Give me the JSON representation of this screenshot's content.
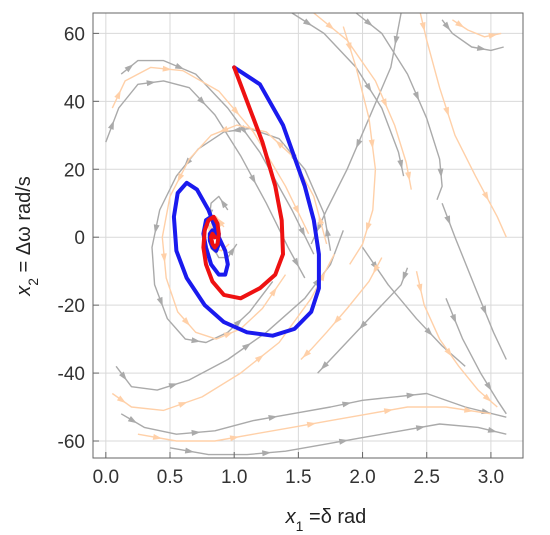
{
  "chart_data": {
    "type": "line",
    "title": "",
    "xlabel": {
      "var": "x",
      "sub": "1",
      "rest": " =δ rad"
    },
    "ylabel": {
      "var": "x",
      "sub": "2",
      "rest": " = Δω rad/s"
    },
    "xlim": [
      -0.1,
      3.25
    ],
    "ylim": [
      -65,
      66
    ],
    "xticks": [
      "0.0",
      "0.5",
      "1.0",
      "1.5",
      "2.0",
      "2.5",
      "3.0"
    ],
    "yticks": [
      "60",
      "40",
      "20",
      "0",
      "-20",
      "-40",
      "-60"
    ],
    "grid": true,
    "series": [
      {
        "kind": "trajectory",
        "color": "#1a1aee",
        "x": [
          1.0,
          1.2,
          1.38,
          1.55,
          1.62,
          1.66,
          1.66,
          1.6,
          1.47,
          1.3,
          1.1,
          0.92,
          0.77,
          0.63,
          0.55,
          0.53,
          0.56,
          0.63,
          0.71,
          0.8,
          0.88,
          0.93,
          0.95,
          0.93,
          0.88,
          0.82,
          0.78,
          0.76,
          0.78,
          0.82,
          0.86,
          0.88,
          0.88,
          0.86,
          0.83,
          0.81,
          0.81,
          0.83,
          0.85
        ],
        "y": [
          50,
          45,
          33,
          15,
          5,
          -5,
          -15,
          -22,
          -27,
          -29,
          -28,
          -25,
          -20,
          -12,
          -4,
          6,
          13,
          16,
          14,
          8,
          0,
          -4,
          -8,
          -11,
          -11,
          -8,
          -3,
          1,
          5,
          6,
          4,
          1,
          -2,
          -4,
          -3,
          -1,
          1,
          2,
          0
        ]
      },
      {
        "kind": "trajectory",
        "color": "#ee1111",
        "x": [
          1.0,
          1.1,
          1.22,
          1.32,
          1.37,
          1.38,
          1.32,
          1.2,
          1.05,
          0.92,
          0.83,
          0.78,
          0.76,
          0.77,
          0.8,
          0.84,
          0.87,
          0.88,
          0.87,
          0.85,
          0.83,
          0.82,
          0.83,
          0.85
        ],
        "y": [
          50,
          40,
          28,
          15,
          5,
          -5,
          -11,
          -15,
          -18,
          -17,
          -13,
          -8,
          -3,
          2,
          5,
          6,
          4,
          1,
          -2,
          -3,
          -2,
          0,
          1,
          0
        ]
      }
    ],
    "streamlines": [
      {
        "color": "#aaaaaa",
        "lines": [
          {
            "x": [
              0.12,
              0.25,
              0.45,
              0.7,
              0.95,
              1.2,
              1.45,
              1.62
            ],
            "y": [
              48,
              52,
              52,
              48,
              38,
              25,
              8,
              -5
            ]
          },
          {
            "x": [
              0.0,
              0.1,
              0.25,
              0.45,
              0.65,
              0.85,
              1.05,
              1.25,
              1.42,
              1.55
            ],
            "y": [
              28,
              38,
              45,
              46,
              44,
              36,
              24,
              10,
              -3,
              -12
            ]
          },
          {
            "x": [
              1.75,
              1.7,
              1.55,
              1.35,
              1.12,
              0.92,
              0.72,
              0.55,
              0.42,
              0.36,
              0.38,
              0.48,
              0.62,
              0.78,
              0.95,
              1.12,
              1.3
            ],
            "y": [
              -4,
              7,
              20,
              29,
              32,
              31,
              26,
              18,
              8,
              -3,
              -14,
              -24,
              -30,
              -31,
              -28,
              -22,
              -13
            ]
          },
          {
            "x": [
              0.08,
              0.2,
              0.4,
              0.65,
              0.95,
              1.25,
              1.55,
              1.75,
              1.85
            ],
            "y": [
              -38,
              -44,
              -45,
              -42,
              -36,
              -28,
              -18,
              -8,
              2
            ]
          },
          {
            "x": [
              0.12,
              0.3,
              0.55,
              0.85,
              1.15,
              1.45,
              1.75,
              2.0,
              2.25,
              2.5,
              2.8,
              3.12
            ],
            "y": [
              -52,
              -56,
              -58,
              -57,
              -54,
              -52,
              -50,
              -48,
              -47,
              -46,
              -50,
              -53
            ]
          },
          {
            "x": [
              0.5,
              0.8,
              1.1,
              1.4,
              1.7,
              2.0,
              2.3,
              2.6,
              2.9,
              3.12
            ],
            "y": [
              -62,
              -64,
              -64,
              -63,
              -61,
              -59,
              -57,
              -55,
              -56,
              -58
            ]
          },
          {
            "x": [
              1.45,
              1.7,
              1.95,
              2.15,
              2.28,
              2.32
            ],
            "y": [
              66,
              60,
              50,
              38,
              25,
              18
            ]
          },
          {
            "x": [
              1.95,
              2.15,
              2.35,
              2.5,
              2.6,
              2.62,
              2.58
            ],
            "y": [
              66,
              60,
              48,
              35,
              23,
              15,
              11
            ]
          },
          {
            "x": [
              2.62,
              2.7,
              2.85,
              3.0,
              3.1
            ],
            "y": [
              64,
              60,
              56,
              55,
              56
            ]
          },
          {
            "x": [
              2.35,
              2.3,
              2.1,
              1.9,
              1.75,
              1.65
            ],
            "y": [
              -9,
              -14,
              -22,
              -30,
              -36,
              -40
            ]
          },
          {
            "x": [
              2.62,
              2.72,
              2.88,
              3.02,
              3.12
            ],
            "y": [
              10,
              0,
              -15,
              -28,
              -36
            ]
          },
          {
            "x": [
              2.65,
              2.78,
              2.92,
              3.05,
              3.12
            ],
            "y": [
              -18,
              -30,
              -40,
              -48,
              -52
            ]
          },
          {
            "x": [
              2.0,
              2.2,
              2.42,
              2.62,
              2.8
            ],
            "y": [
              -3,
              -14,
              -24,
              -32,
              -38
            ]
          },
          {
            "x": [
              2.3,
              2.22,
              2.05,
              1.88,
              1.72,
              1.6
            ],
            "y": [
              66,
              50,
              35,
              20,
              8,
              -2
            ]
          },
          {
            "x": [
              0.95,
              0.88,
              0.82,
              0.8,
              0.82,
              0.88,
              0.95,
              1.02
            ],
            "y": [
              8,
              12,
              10,
              4,
              -2,
              -6,
              -6,
              -2
            ]
          }
        ]
      },
      {
        "color": "#ffd0a8",
        "lines": [
          {
            "x": [
              0.05,
              0.15,
              0.35,
              0.6,
              0.88,
              1.15,
              1.4,
              1.58
            ],
            "y": [
              38,
              46,
              50,
              49,
              43,
              31,
              15,
              1
            ]
          },
          {
            "x": [
              0.05,
              0.2,
              0.45,
              0.75,
              1.05,
              1.35,
              1.6,
              1.78
            ],
            "y": [
              -46,
              -50,
              -51,
              -47,
              -40,
              -31,
              -18,
              -5
            ]
          },
          {
            "x": [
              0.25,
              0.55,
              0.85,
              1.15,
              1.45,
              1.75,
              2.05,
              2.35,
              2.65,
              3.0
            ],
            "y": [
              -58,
              -60,
              -60,
              -58,
              -56,
              -54,
              -52,
              -50,
              -50,
              -52
            ]
          },
          {
            "x": [
              1.72,
              1.62,
              1.45,
              1.25,
              1.02,
              0.82,
              0.65,
              0.5,
              0.44,
              0.47,
              0.56,
              0.7,
              0.86,
              1.05,
              1.22,
              1.4
            ],
            "y": [
              -2,
              12,
              24,
              31,
              33,
              30,
              23,
              12,
              0,
              -12,
              -22,
              -28,
              -30,
              -27,
              -21,
              -11
            ]
          },
          {
            "x": [
              1.62,
              1.88,
              2.1,
              2.25,
              2.34,
              2.38
            ],
            "y": [
              66,
              58,
              46,
              33,
              22,
              14
            ]
          },
          {
            "x": [
              2.45,
              2.5,
              2.6,
              2.72,
              2.88,
              3.05,
              3.12
            ],
            "y": [
              66,
              58,
              44,
              30,
              18,
              6,
              0
            ]
          },
          {
            "x": [
              2.42,
              2.48,
              2.6,
              2.75,
              2.9,
              3.05
            ],
            "y": [
              -10,
              -20,
              -30,
              -38,
              -45,
              -50
            ]
          },
          {
            "x": [
              2.15,
              2.05,
              1.88,
              1.72,
              1.6,
              1.52
            ],
            "y": [
              -6,
              -13,
              -21,
              -28,
              -33,
              -36
            ]
          },
          {
            "x": [
              1.85,
              1.95,
              2.05,
              2.1,
              2.08,
              2.0,
              1.9
            ],
            "y": [
              62,
              50,
              35,
              20,
              8,
              -2,
              -8
            ]
          },
          {
            "x": [
              2.7,
              2.82,
              2.95,
              3.08
            ],
            "y": [
              64,
              61,
              59,
              60
            ]
          },
          {
            "x": [
              0.92,
              0.86,
              0.82,
              0.81,
              0.84,
              0.9,
              0.96
            ],
            "y": [
              3,
              6,
              4,
              0,
              -3,
              -4,
              -2
            ]
          }
        ]
      }
    ]
  }
}
